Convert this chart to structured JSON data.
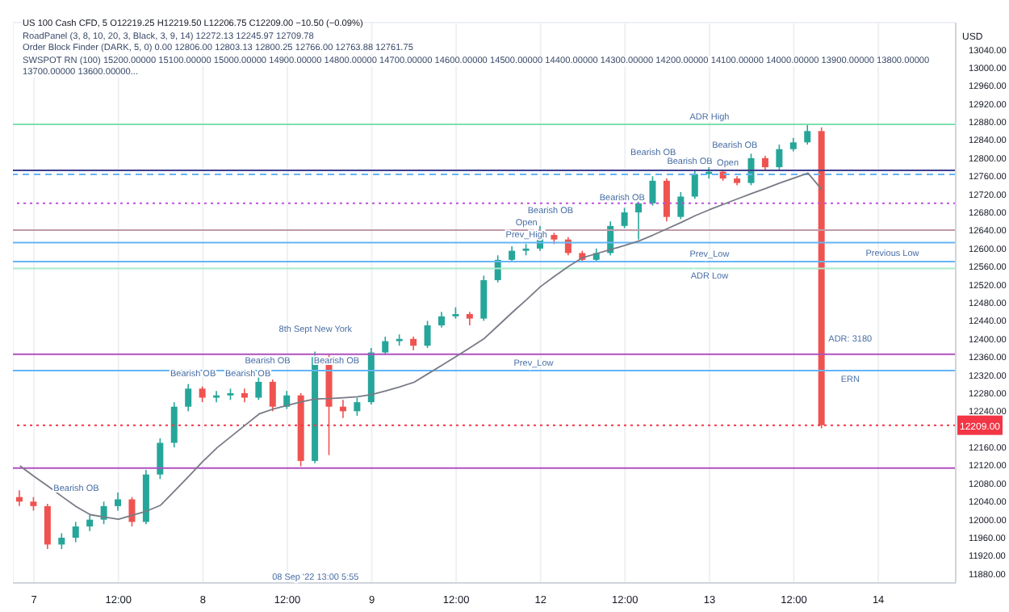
{
  "chart_data": {
    "type": "candlestick",
    "title": "US 100 Cash CFD, 5 O12219.25 H12219.50 L12206.75 C12209.00 −10.50 (−0.09%)",
    "annotations": [
      "RoadPanel (3, 8, 10, 20, 3, Black, 3, 9, 14) 12272.13 12245.97 12709.78",
      "Order Block Finder (DARK, 5, 0) 0.00 12806.00 12803.13 12800.25 12766.00 12763.88 12761.75",
      "SWSPOT RN (100) 15200.00000 15100.00000 15000.00000 14900.00000 14800.00000 14700.00000 14600.00000 14500.00000 14400.00000 14300.00000 14200.00000 14100.00000 14000.00000 13900.00000 13800.00000 13700.00000 13600.00000...",
      "8th Sept New York",
      "Bearish OB",
      "Bearish OB",
      "Bearish OB",
      "Bearish OB",
      "Bearish OB",
      "Bearish OB",
      "Bearish OB",
      "Bearish OB",
      "Bearish OB",
      "Bearish OB",
      {
        "text": "ADR High",
        "y": 12875
      },
      {
        "text": "Open",
        "y": 12641
      },
      {
        "text": "Prev_High",
        "y": 12613
      },
      {
        "text": "Prev_Low",
        "y": 12330
      },
      {
        "text": "Prev_Low",
        "y": 12571
      },
      {
        "text": "ADR Low",
        "y": 12556
      },
      {
        "text": "Open",
        "y": 12773
      },
      {
        "text": "Previous Low",
        "y": 12571
      },
      "ERN",
      "ADR: 3180",
      "08 Sep '22  13:00  5:55"
    ],
    "categories": [
      null,
      "7",
      null,
      null,
      null,
      null,
      null,
      "12:00",
      null,
      null,
      null,
      null,
      null,
      "8",
      null,
      null,
      null,
      null,
      null,
      "12:00",
      null,
      null,
      null,
      null,
      null,
      "9",
      null,
      null,
      null,
      null,
      null,
      "12:00",
      null,
      null,
      null,
      null,
      null,
      "12",
      null,
      null,
      null,
      null,
      null,
      "12:00",
      null,
      null,
      null,
      null,
      null,
      "13",
      null,
      null,
      null,
      null,
      null,
      "12:00",
      null,
      null,
      null,
      null,
      null,
      "14",
      null,
      null,
      null,
      null,
      null
    ],
    "ohlc": [
      [
        12050,
        12065,
        12030,
        12040
      ],
      [
        12040,
        12050,
        12020,
        12030
      ],
      [
        12030,
        12035,
        11935,
        11945
      ],
      [
        11945,
        11970,
        11935,
        11960
      ],
      [
        11960,
        11995,
        11950,
        11985
      ],
      [
        11985,
        12010,
        11975,
        12000
      ],
      [
        12000,
        12040,
        11990,
        12030
      ],
      [
        12030,
        12060,
        12020,
        12045
      ],
      [
        12045,
        12050,
        11985,
        11995
      ],
      [
        11995,
        12110,
        11990,
        12100
      ],
      [
        12100,
        12180,
        12090,
        12170
      ],
      [
        12170,
        12260,
        12160,
        12250
      ],
      [
        12250,
        12300,
        12240,
        12290
      ],
      [
        12290,
        12295,
        12260,
        12270
      ],
      [
        12270,
        12285,
        12260,
        12275
      ],
      [
        12275,
        12290,
        12265,
        12280
      ],
      [
        12280,
        12290,
        12260,
        12270
      ],
      [
        12270,
        12315,
        12265,
        12305
      ],
      [
        12305,
        12310,
        12240,
        12250
      ],
      [
        12250,
        12285,
        12245,
        12275
      ],
      [
        12275,
        12280,
        12118,
        12130
      ],
      [
        12130,
        12372,
        12125,
        12360
      ],
      [
        12360,
        12365,
        12143,
        12250
      ],
      [
        12250,
        12265,
        12225,
        12240
      ],
      [
        12240,
        12270,
        12230,
        12260
      ],
      [
        12260,
        12380,
        12255,
        12370
      ],
      [
        12370,
        12405,
        12365,
        12395
      ],
      [
        12395,
        12410,
        12385,
        12400
      ],
      [
        12400,
        12405,
        12375,
        12385
      ],
      [
        12385,
        12440,
        12380,
        12430
      ],
      [
        12430,
        12460,
        12425,
        12450
      ],
      [
        12450,
        12470,
        12445,
        12455
      ],
      [
        12455,
        12460,
        12430,
        12445
      ],
      [
        12445,
        12540,
        12440,
        12530
      ],
      [
        12530,
        12585,
        12525,
        12575
      ],
      [
        12575,
        12605,
        12570,
        12595
      ],
      [
        12595,
        12610,
        12585,
        12600
      ],
      [
        12600,
        12650,
        12595,
        12630
      ],
      [
        12630,
        12635,
        12610,
        12620
      ],
      [
        12620,
        12625,
        12585,
        12590
      ],
      [
        12590,
        12595,
        12570,
        12575
      ],
      [
        12575,
        12600,
        12570,
        12590
      ],
      [
        12590,
        12660,
        12585,
        12650
      ],
      [
        12650,
        12690,
        12645,
        12680
      ],
      [
        12680,
        12710,
        12620,
        12700
      ],
      [
        12700,
        12760,
        12695,
        12750
      ],
      [
        12750,
        12755,
        12660,
        12670
      ],
      [
        12670,
        12725,
        12665,
        12715
      ],
      [
        12715,
        12775,
        12710,
        12765
      ],
      [
        12765,
        12780,
        12755,
        12770
      ],
      [
        12770,
        12775,
        12750,
        12755
      ],
      [
        12755,
        12760,
        12740,
        12745
      ],
      [
        12745,
        12810,
        12740,
        12800
      ],
      [
        12800,
        12805,
        12775,
        12780
      ],
      [
        12780,
        12830,
        12775,
        12820
      ],
      [
        12820,
        12845,
        12815,
        12835
      ],
      [
        12835,
        12875,
        12830,
        12860
      ],
      [
        12860,
        12868,
        12202,
        12209
      ],
      null,
      null,
      null,
      null,
      null,
      null,
      null,
      null,
      null
    ],
    "colors": [
      "#ef5350",
      "#ef5350",
      "#ef5350",
      "#26a69a",
      "#26a69a",
      "#26a69a",
      "#26a69a",
      "#26a69a",
      "#ef5350",
      "#26a69a",
      "#26a69a",
      "#26a69a",
      "#26a69a",
      "#ef5350",
      "#26a69a",
      "#26a69a",
      "#ef5350",
      "#26a69a",
      "#ef5350",
      "#26a69a",
      "#ef5350",
      "#26a69a",
      "#ef5350",
      "#ef5350",
      "#26a69a",
      "#26a69a",
      "#26a69a",
      "#26a69a",
      "#ef5350",
      "#26a69a",
      "#26a69a",
      "#26a69a",
      "#ef5350",
      "#26a69a",
      "#26a69a",
      "#26a69a",
      "#26a69a",
      "#26a69a",
      "#ef5350",
      "#ef5350",
      "#ef5350",
      "#26a69a",
      "#26a69a",
      "#26a69a",
      "#26a69a",
      "#26a69a",
      "#ef5350",
      "#26a69a",
      "#26a69a",
      "#26a69a",
      "#ef5350",
      "#ef5350",
      "#26a69a",
      "#ef5350",
      "#26a69a",
      "#26a69a",
      "#26a69a",
      "#ef5350",
      null,
      null,
      null,
      null,
      null,
      null,
      null,
      null,
      null
    ],
    "series": [
      {
        "type": "line",
        "color": "#787b86",
        "values": [
          12119,
          12096,
          12074,
          12051,
          12029,
          12011,
          12006,
          12001,
          12010,
          12019,
          12032,
          12064,
          12096,
          12129,
          12159,
          12184,
          12209,
          12234,
          12245,
          12253,
          12261,
          12267,
          12268,
          12270,
          12272,
          12277,
          12285,
          12294,
          12304,
          12323,
          12342,
          12361,
          12381,
          12401,
          12430,
          12459,
          12487,
          12516,
          12539,
          12561,
          12580,
          12589,
          12598,
          12607,
          12617,
          12630,
          12644,
          12658,
          12673,
          12686,
          12698,
          12710,
          12722,
          12733,
          12745,
          12756,
          12767,
          12730,
          null,
          null,
          null,
          null,
          null,
          null,
          null,
          null,
          null
        ]
      }
    ],
    "ref_lines": [
      {
        "axis": "y",
        "value": 12875,
        "color": "#7ee0b0",
        "line_style": "solid"
      },
      {
        "axis": "y",
        "value": 12773,
        "color": "#3f3f8f",
        "line_style": "solid"
      },
      {
        "axis": "y",
        "value": 12764,
        "color": "#64b5f6",
        "line_style": "dashed"
      },
      {
        "axis": "y",
        "value": 12700,
        "color": "#c050e0",
        "line_style": "dotted"
      },
      {
        "axis": "y",
        "value": 12641,
        "color": "#c09aa8",
        "line_style": "solid"
      },
      {
        "axis": "y",
        "value": 12613,
        "color": "#64b5f6",
        "line_style": "solid"
      },
      {
        "axis": "y",
        "value": 12571,
        "color": "#64b5f6",
        "line_style": "solid"
      },
      {
        "axis": "y",
        "value": 12556,
        "color": "#a8ecc8",
        "line_style": "solid"
      },
      {
        "axis": "y",
        "value": 12366,
        "color": "#b050c0",
        "line_style": "solid"
      },
      {
        "axis": "y",
        "value": 12330,
        "color": "#64b5f6",
        "line_style": "solid"
      },
      {
        "axis": "y",
        "value": 12114,
        "color": "#b050c0",
        "line_style": "solid"
      },
      {
        "axis": "y",
        "value": 12209,
        "color": "#f23645",
        "line_style": "dotted",
        "label": "12209.00"
      }
    ],
    "ylim": [
      11860,
      13100
    ],
    "ylabel": "USD",
    "yticks": [
      {
        "value": 11880,
        "label": "11880.00"
      },
      {
        "value": 11920,
        "label": "11920.00"
      },
      {
        "value": 11960,
        "label": "11960.00"
      },
      {
        "value": 12000,
        "label": "12000.00"
      },
      {
        "value": 12040,
        "label": "12040.00"
      },
      {
        "value": 12080,
        "label": "12080.00"
      },
      {
        "value": 12120,
        "label": "12120.00"
      },
      {
        "value": 12160,
        "label": "12160.00"
      },
      {
        "value": 12240,
        "label": "12240.00"
      },
      {
        "value": 12280,
        "label": "12280.00"
      },
      {
        "value": 12320,
        "label": "12320.00"
      },
      {
        "value": 12360,
        "label": "12360.00"
      },
      {
        "value": 12400,
        "label": "12400.00"
      },
      {
        "value": 12440,
        "label": "12440.00"
      },
      {
        "value": 12480,
        "label": "12480.00"
      },
      {
        "value": 12520,
        "label": "12520.00"
      },
      {
        "value": 12560,
        "label": "12560.00"
      },
      {
        "value": 12600,
        "label": "12600.00"
      },
      {
        "value": 12640,
        "label": "12640.00"
      },
      {
        "value": 12680,
        "label": "12680.00"
      },
      {
        "value": 12720,
        "label": "12720.00"
      },
      {
        "value": 12760,
        "label": "12760.00"
      },
      {
        "value": 12800,
        "label": "12800.00"
      },
      {
        "value": 12840,
        "label": "12840.00"
      },
      {
        "value": 12880,
        "label": "12880.00"
      },
      {
        "value": 12920,
        "label": "12920.00"
      },
      {
        "value": 12960,
        "label": "12960.00"
      },
      {
        "value": 13000,
        "label": "13000.00"
      },
      {
        "value": 13040,
        "label": "13040.00"
      }
    ],
    "grid": true
  }
}
